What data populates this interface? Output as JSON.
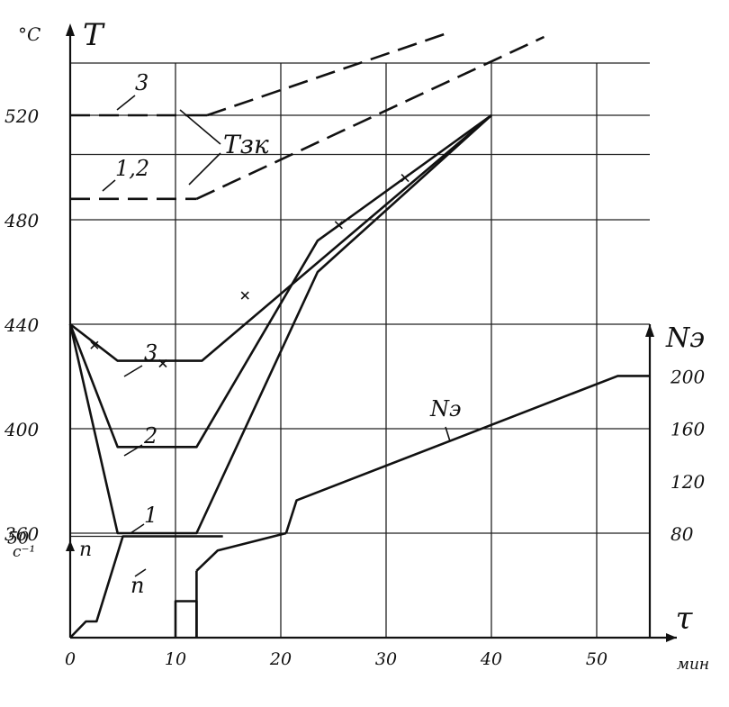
{
  "chart_data": {
    "type": "line",
    "x_axis": {
      "label": "τ",
      "unit": "мин",
      "ticks": [
        0,
        10,
        20,
        30,
        40,
        50
      ],
      "range": [
        0,
        55
      ]
    },
    "temperature_axis": {
      "label": "T",
      "unit": "°C",
      "ticks": [
        360,
        400,
        440,
        480,
        520
      ],
      "range": [
        360,
        540
      ]
    },
    "speed_axis": {
      "label": "n",
      "unit": "c⁻¹",
      "ticks": [
        50
      ],
      "range": [
        0,
        80
      ]
    },
    "power_axis": {
      "label": "Nэ",
      "ticks": [
        80,
        120,
        160,
        200
      ],
      "range": [
        80,
        200
      ]
    },
    "temperature_curves": [
      {
        "name": "1",
        "points": [
          [
            0,
            440
          ],
          [
            4.5,
            360
          ],
          [
            12,
            360
          ],
          [
            23.5,
            460
          ],
          [
            40,
            520
          ]
        ]
      },
      {
        "name": "2",
        "points": [
          [
            0,
            440
          ],
          [
            4.5,
            393
          ],
          [
            12,
            393
          ],
          [
            23.5,
            472
          ],
          [
            40,
            520
          ]
        ]
      },
      {
        "name": "3",
        "points": [
          [
            0,
            440
          ],
          [
            4.5,
            426
          ],
          [
            12.5,
            426
          ],
          [
            40,
            520
          ]
        ]
      }
    ],
    "curve3_marks": [
      [
        2.3,
        432
      ],
      [
        8.8,
        425
      ],
      [
        16.6,
        451
      ],
      [
        25.5,
        478
      ],
      [
        31.8,
        496
      ]
    ],
    "tzk_curves": [
      {
        "name": "3",
        "points": [
          [
            0,
            520
          ],
          [
            11,
            520
          ]
        ],
        "rise": [
          [
            13,
            520
          ],
          [
            35.5,
            551
          ]
        ],
        "style": "dashed"
      },
      {
        "name": "1,2",
        "points": [
          [
            0,
            488
          ],
          [
            12,
            488
          ]
        ],
        "rise": [
          [
            12,
            488
          ],
          [
            45,
            550
          ]
        ],
        "style": "dashed"
      }
    ],
    "tzk_label": "Tзк",
    "n_curve": {
      "name": "n",
      "points": [
        [
          0,
          0
        ],
        [
          1.5,
          8
        ],
        [
          2.5,
          8
        ],
        [
          5,
          50
        ],
        [
          14.5,
          50
        ]
      ],
      "step": [
        [
          10,
          0
        ],
        [
          10,
          18
        ],
        [
          12,
          18
        ],
        [
          12,
          0
        ]
      ],
      "rise": [
        [
          12,
          33
        ],
        [
          14,
          43
        ],
        [
          20.5,
          80
        ]
      ]
    },
    "power_curve": {
      "name": "Nэ",
      "points": [
        [
          20.5,
          80
        ],
        [
          21.5,
          105
        ],
        [
          52,
          200
        ],
        [
          55,
          200
        ]
      ]
    },
    "upper_gridlines": [
      505,
      540
    ]
  }
}
